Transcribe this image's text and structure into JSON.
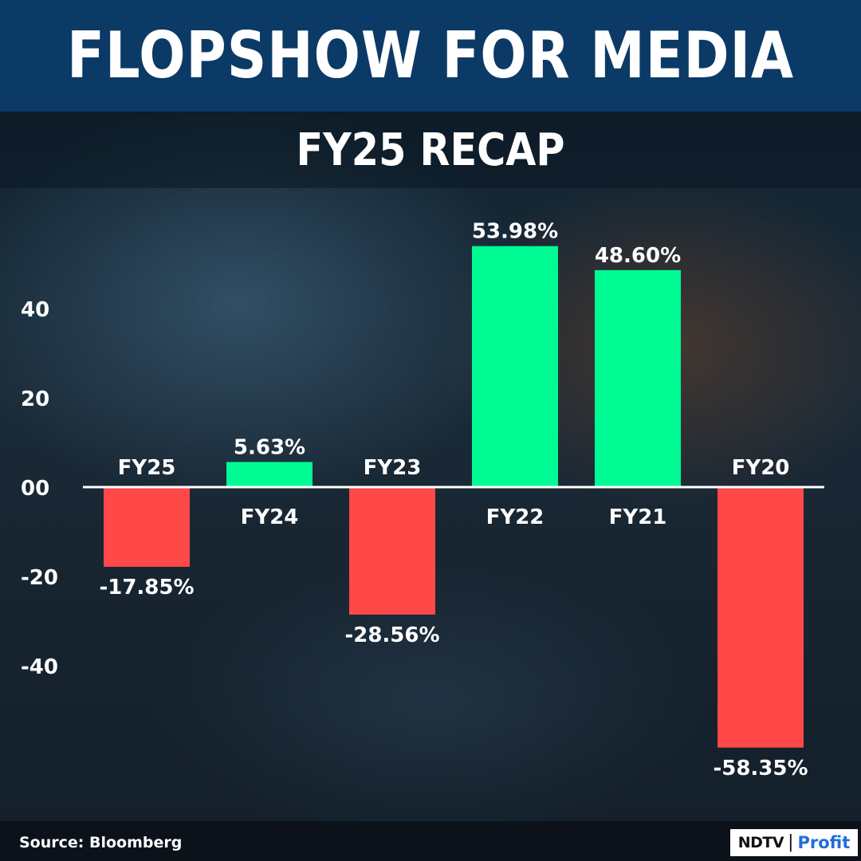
{
  "header": {
    "title": "FLOPSHOW FOR MEDIA",
    "subtitle": "FY25 RECAP"
  },
  "footer": {
    "source": "Source: Bloomberg",
    "logo_primary": "NDTV",
    "logo_separator": "|",
    "logo_secondary": "Profit"
  },
  "colors": {
    "banner": "#0c3a66",
    "positive": "#00fa94",
    "negative": "#ff4949",
    "text": "#ffffff",
    "logo_accent": "#1e6fd9"
  },
  "chart_data": {
    "type": "bar",
    "categories": [
      "FY25",
      "FY24",
      "FY23",
      "FY22",
      "FY21",
      "FY20"
    ],
    "values": [
      -17.85,
      5.63,
      -28.56,
      53.98,
      48.6,
      -58.35
    ],
    "data_labels": [
      "-17.85%",
      "5.63%",
      "-28.56%",
      "53.98%",
      "48.60%",
      "-58.35%"
    ],
    "yticks": [
      40,
      20,
      0,
      -20,
      -40
    ],
    "ytick_labels": [
      "40",
      "20",
      "00",
      "-20",
      "-40"
    ],
    "ylim": [
      -60,
      60
    ],
    "grid": false,
    "legend": "none",
    "xlabel": "",
    "ylabel": ""
  }
}
